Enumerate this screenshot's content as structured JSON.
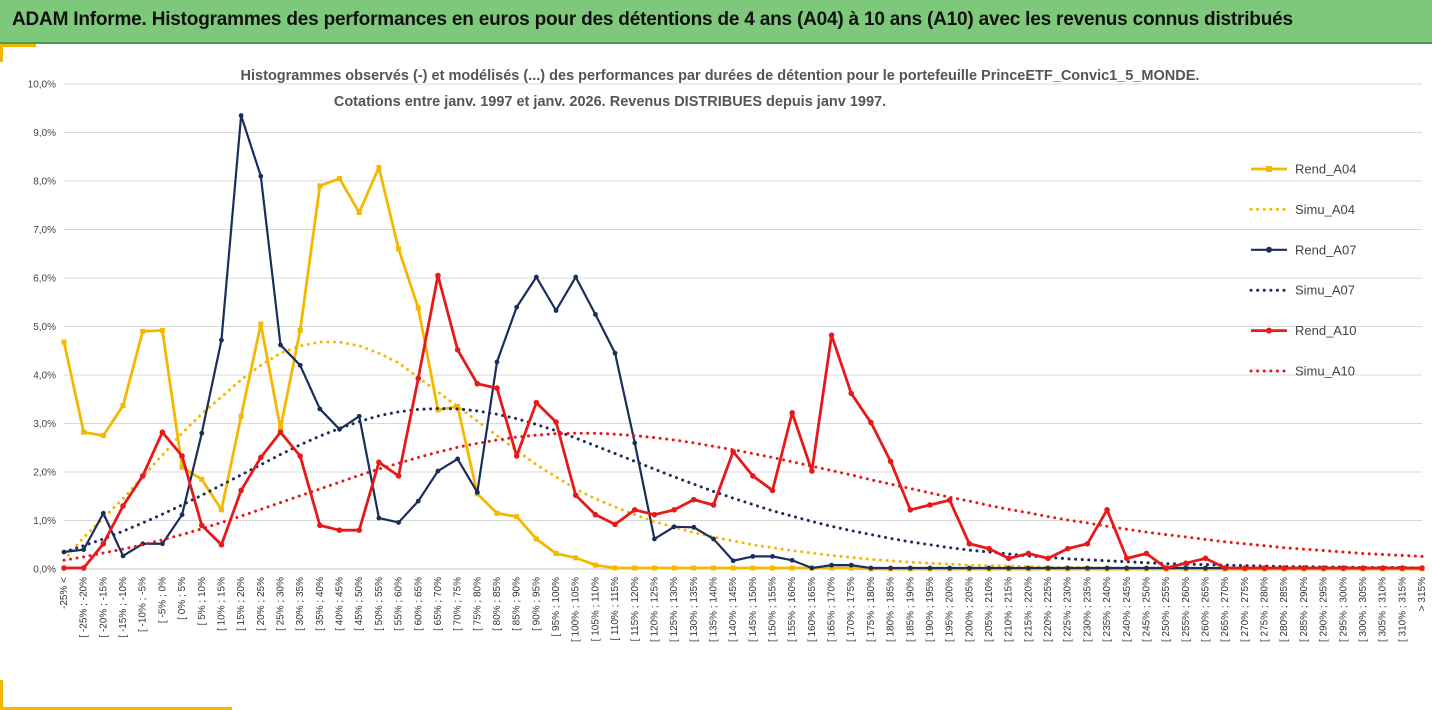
{
  "header": {
    "title": "ADAM Informe. Histogrammes des performances en euros pour des détentions de 4 ans (A04) à 10 ans (A10) avec les revenus connus distribués"
  },
  "colors": {
    "banner": "#7ec87c",
    "accent": "#f2b705",
    "a04": "#f5b800",
    "a07": "#1b2d5c",
    "a10": "#e8191b",
    "grid": "#d9d9d9"
  },
  "chart_data": {
    "type": "line",
    "title_line1": "Histogrammes observés (-) et modélisés (...) des performances  par durées de détention pour le portefeuille PrinceETF_Convic1_5_MONDE.",
    "title_line2": "Cotations  entre janv. 1997 et janv. 2026. Revenus DISTRIBUES depuis janv 1997.",
    "y_ticks": [
      "0,0%",
      "1,0%",
      "2,0%",
      "3,0%",
      "4,0%",
      "5,0%",
      "6,0%",
      "7,0%",
      "8,0%",
      "9,0%",
      "10,0%"
    ],
    "ylim": [
      0,
      10
    ],
    "categories": [
      "-25% <",
      "[ -25% ; -20%",
      "[ -20% ; -15%",
      "[ -15% ; -10%",
      "[ -10% ; -5%",
      "[ -5% ; 0%",
      "[ 0% ; 5%",
      "[ 5% ; 10%",
      "[ 10% ; 15%",
      "[ 15% ; 20%",
      "[ 20% ; 25%",
      "[ 25% ; 30%",
      "[ 30% ; 35%",
      "[ 35% ; 40%",
      "[ 40% ; 45%",
      "[ 45% ; 50%",
      "[ 50% ; 55%",
      "[ 55% ; 60%",
      "[ 60% ; 65%",
      "[ 65% ; 70%",
      "[ 70% ; 75%",
      "[ 75% ; 80%",
      "[ 80% ; 85%",
      "[ 85% ; 90%",
      "[ 90% ; 95%",
      "[ 95% ; 100%",
      "[ 100% ; 105%",
      "[ 105% ; 110%",
      "[ 110% ; 115%",
      "[ 115% ; 120%",
      "[ 120% ; 125%",
      "[ 125% ; 130%",
      "[ 130% ; 135%",
      "[ 135% ; 140%",
      "[ 140% ; 145%",
      "[ 145% ; 150%",
      "[ 150% ; 155%",
      "[ 155% ; 160%",
      "[ 160% ; 165%",
      "[ 165% ; 170%",
      "[ 170% ; 175%",
      "[ 175% ; 180%",
      "[ 180% ; 185%",
      "[ 185% ; 190%",
      "[ 190% ; 195%",
      "[ 195% ; 200%",
      "[ 200% ; 205%",
      "[ 205% ; 210%",
      "[ 210% ; 215%",
      "[ 215% ; 220%",
      "[ 220% ; 225%",
      "[ 225% ; 230%",
      "[ 230% ; 235%",
      "[ 235% ; 240%",
      "[ 240% ; 245%",
      "[ 245% ; 250%",
      "[ 250% ; 255%",
      "[ 255% ; 260%",
      "[ 260% ; 265%",
      "[ 265% ; 270%",
      "[ 270% ; 275%",
      "[ 275% ; 280%",
      "[ 280% ; 285%",
      "[ 285% ; 290%",
      "[ 290% ; 295%",
      "[ 295% ; 300%",
      "[ 300% ; 305%",
      "[ 305% ; 310%",
      "[ 310% ; 315%",
      "> 315%"
    ],
    "series": [
      {
        "name": "Rend_A04",
        "key": "a04",
        "style": "solid",
        "values": [
          4.68,
          2.82,
          2.75,
          3.37,
          4.9,
          4.92,
          2.1,
          1.85,
          1.22,
          3.15,
          5.05,
          2.9,
          4.92,
          7.9,
          8.05,
          7.35,
          8.28,
          6.6,
          5.38,
          3.28,
          3.35,
          1.55,
          1.15,
          1.08,
          0.62,
          0.32,
          0.23,
          0.08,
          0.02,
          0.02,
          0.02,
          0.02,
          0.02,
          0.02,
          0.02,
          0.02,
          0.02,
          0.02,
          0.02,
          0.02,
          0.02,
          0,
          0,
          0,
          0,
          0,
          0,
          0,
          0,
          0,
          0,
          0,
          0,
          0,
          0,
          0,
          0,
          0,
          0,
          0,
          0,
          0,
          0,
          0,
          0,
          0,
          0,
          0,
          0,
          0
        ]
      },
      {
        "name": "Simu_A04",
        "key": "a04",
        "style": "dotted",
        "values": [
          0.18,
          0.65,
          1.05,
          1.45,
          1.9,
          2.35,
          2.8,
          3.2,
          3.55,
          3.9,
          4.2,
          4.45,
          4.6,
          4.68,
          4.68,
          4.6,
          4.45,
          4.25,
          3.95,
          3.65,
          3.35,
          3.05,
          2.75,
          2.45,
          2.15,
          1.9,
          1.65,
          1.45,
          1.28,
          1.12,
          0.98,
          0.86,
          0.75,
          0.66,
          0.58,
          0.5,
          0.44,
          0.38,
          0.33,
          0.28,
          0.24,
          0.2,
          0.17,
          0.14,
          0.12,
          0.1,
          0.08,
          0.07,
          0.06,
          0.05,
          0.04,
          0.03,
          0.03,
          0.02,
          0.02,
          0.02,
          0.01,
          0.01,
          0.01,
          0.01,
          0.01,
          0.01,
          0.01,
          0.01,
          0.01,
          0.01,
          0.01,
          0.01,
          0.01,
          0.01
        ]
      },
      {
        "name": "Rend_A07",
        "key": "a07",
        "style": "solid",
        "values": [
          0.35,
          0.4,
          1.15,
          0.27,
          0.52,
          0.52,
          1.12,
          2.8,
          4.72,
          9.35,
          8.1,
          4.62,
          4.2,
          3.3,
          2.88,
          3.15,
          1.05,
          0.96,
          1.4,
          2.02,
          2.27,
          1.58,
          4.27,
          5.4,
          6.02,
          5.33,
          6.02,
          5.25,
          4.45,
          2.6,
          0.62,
          0.87,
          0.86,
          0.62,
          0.17,
          0.26,
          0.26,
          0.18,
          0.02,
          0.08,
          0.08,
          0.02,
          0.02,
          0.02,
          0.02,
          0.02,
          0.02,
          0.02,
          0.02,
          0.02,
          0.02,
          0.02,
          0.02,
          0.02,
          0.02,
          0.02,
          0.02,
          0.02,
          0.02,
          0.02,
          0.02,
          0.02,
          0.02,
          0.02,
          0.02,
          0.02,
          0.02,
          0.02,
          0.02,
          0.02
        ]
      },
      {
        "name": "Simu_A07",
        "key": "a07",
        "style": "dotted",
        "values": [
          0.35,
          0.48,
          0.62,
          0.78,
          0.95,
          1.13,
          1.32,
          1.52,
          1.73,
          1.94,
          2.15,
          2.36,
          2.56,
          2.74,
          2.9,
          3.04,
          3.16,
          3.24,
          3.29,
          3.31,
          3.3,
          3.26,
          3.19,
          3.1,
          2.98,
          2.85,
          2.7,
          2.54,
          2.38,
          2.22,
          2.06,
          1.9,
          1.75,
          1.6,
          1.46,
          1.33,
          1.2,
          1.09,
          0.98,
          0.88,
          0.79,
          0.71,
          0.63,
          0.56,
          0.5,
          0.44,
          0.39,
          0.35,
          0.31,
          0.27,
          0.24,
          0.21,
          0.19,
          0.17,
          0.15,
          0.13,
          0.11,
          0.1,
          0.09,
          0.08,
          0.07,
          0.06,
          0.05,
          0.05,
          0.04,
          0.04,
          0.03,
          0.03,
          0.03,
          0.02
        ]
      },
      {
        "name": "Rend_A10",
        "key": "a10",
        "style": "solid",
        "values": [
          0.02,
          0.02,
          0.52,
          1.3,
          1.92,
          2.82,
          2.33,
          0.9,
          0.5,
          1.62,
          2.3,
          2.82,
          2.33,
          0.9,
          0.8,
          0.8,
          2.2,
          1.92,
          3.93,
          6.05,
          4.52,
          3.82,
          3.73,
          2.33,
          3.43,
          3.03,
          1.52,
          1.12,
          0.92,
          1.22,
          1.12,
          1.22,
          1.43,
          1.32,
          2.42,
          1.92,
          1.62,
          3.22,
          2.02,
          4.82,
          3.62,
          3.02,
          2.22,
          1.22,
          1.32,
          1.42,
          0.52,
          0.42,
          0.22,
          0.32,
          0.22,
          0.42,
          0.52,
          1.22,
          0.22,
          0.32,
          0.02,
          0.12,
          0.22,
          0.02,
          0.02,
          0.02,
          0.02,
          0.02,
          0.02,
          0.02,
          0.02,
          0.02,
          0.02,
          0.02
        ]
      },
      {
        "name": "Simu_A10",
        "key": "a10",
        "style": "dotted",
        "values": [
          0.18,
          0.25,
          0.33,
          0.41,
          0.5,
          0.6,
          0.71,
          0.83,
          0.96,
          1.09,
          1.23,
          1.37,
          1.51,
          1.65,
          1.79,
          1.93,
          2.06,
          2.18,
          2.3,
          2.41,
          2.51,
          2.59,
          2.66,
          2.72,
          2.76,
          2.79,
          2.8,
          2.8,
          2.78,
          2.75,
          2.71,
          2.66,
          2.6,
          2.53,
          2.46,
          2.38,
          2.3,
          2.21,
          2.12,
          2.03,
          1.94,
          1.84,
          1.75,
          1.66,
          1.57,
          1.48,
          1.4,
          1.31,
          1.23,
          1.16,
          1.08,
          1.01,
          0.95,
          0.88,
          0.82,
          0.76,
          0.71,
          0.66,
          0.61,
          0.56,
          0.52,
          0.48,
          0.44,
          0.41,
          0.38,
          0.35,
          0.32,
          0.3,
          0.28,
          0.26
        ]
      }
    ],
    "legend": {
      "position": "right",
      "items": [
        {
          "label": "Rend_A04",
          "key": "a04",
          "style": "solid"
        },
        {
          "label": "Simu_A04",
          "key": "a04",
          "style": "dotted"
        },
        {
          "label": "Rend_A07",
          "key": "a07",
          "style": "solid"
        },
        {
          "label": "Simu_A07",
          "key": "a07",
          "style": "dotted"
        },
        {
          "label": "Rend_A10",
          "key": "a10",
          "style": "solid"
        },
        {
          "label": "Simu_A10",
          "key": "a10",
          "style": "dotted"
        }
      ]
    }
  }
}
